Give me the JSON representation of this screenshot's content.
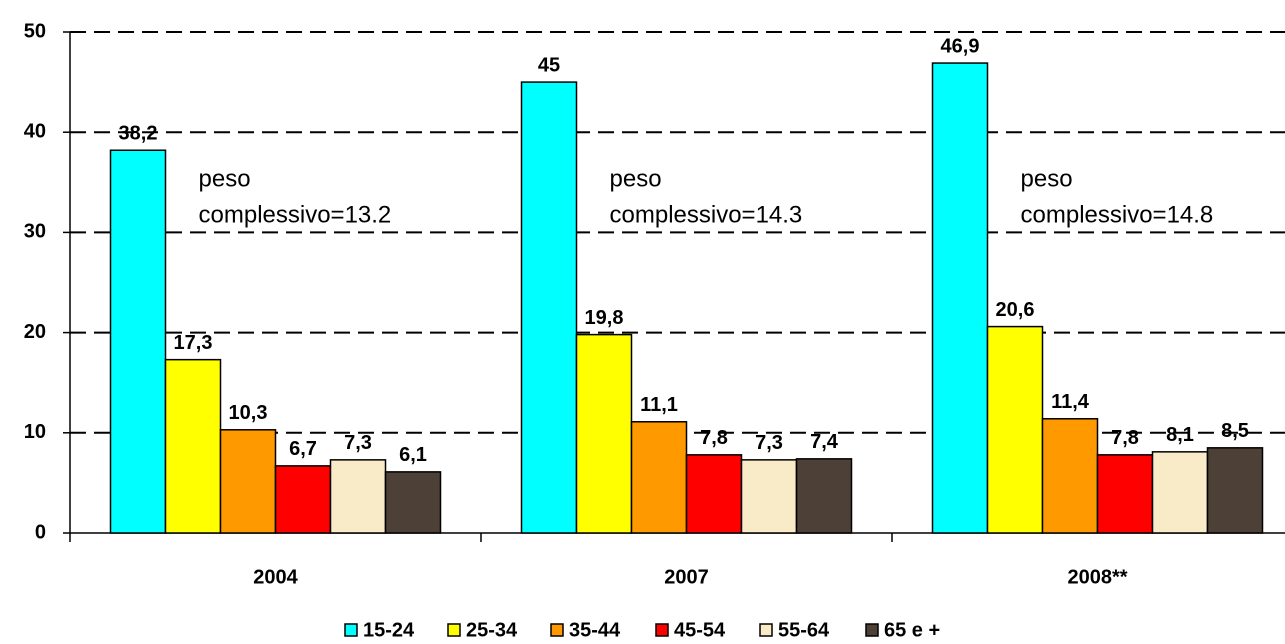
{
  "chart_data": {
    "type": "bar",
    "categories": [
      "2004",
      "2007",
      "2008**"
    ],
    "series": [
      {
        "name": "15-24",
        "color": "#00FFFF",
        "values": [
          38.2,
          45,
          46.9
        ],
        "value_labels": [
          "38,2",
          "45",
          "46,9"
        ]
      },
      {
        "name": "25-34",
        "color": "#FFFF00",
        "values": [
          17.3,
          19.8,
          20.6
        ],
        "value_labels": [
          "17,3",
          "19,8",
          "20,6"
        ]
      },
      {
        "name": "35-44",
        "color": "#FF9900",
        "values": [
          10.3,
          11.1,
          11.4
        ],
        "value_labels": [
          "10,3",
          "11,1",
          "11,4"
        ]
      },
      {
        "name": "45-54",
        "color": "#FF0000",
        "values": [
          6.7,
          7.8,
          7.8
        ],
        "value_labels": [
          "6,7",
          "7,8",
          "7,8"
        ]
      },
      {
        "name": "55-64",
        "color": "#FAEBC8",
        "values": [
          7.3,
          7.3,
          8.1
        ],
        "value_labels": [
          "7,3",
          "7,3",
          "8,1"
        ]
      },
      {
        "name": "65 e +",
        "color": "#4D4036",
        "values": [
          6.1,
          7.4,
          8.5
        ],
        "value_labels": [
          "6,1",
          "7,4",
          "8,5"
        ]
      }
    ],
    "annotations": [
      [
        "peso",
        "complessivo=13.2"
      ],
      [
        "peso",
        "complessivo=14.3"
      ],
      [
        "peso",
        "complessivo=14.8"
      ]
    ],
    "ylim": [
      0,
      50
    ],
    "yticks": [
      0,
      10,
      20,
      30,
      40,
      50
    ],
    "grid": true,
    "legend": "bottom"
  }
}
